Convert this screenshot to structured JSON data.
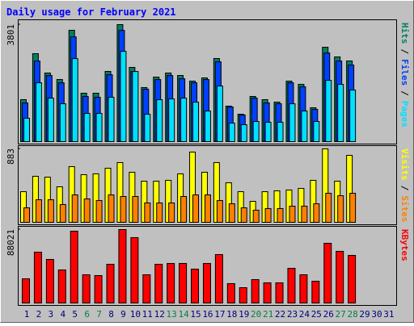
{
  "chart_data": [
    {
      "type": "bar",
      "title": "Daily usage for February 2021",
      "legend_separator": "/",
      "ylim": [
        0,
        3801
      ],
      "yticks": [
        3801
      ],
      "series": [
        {
          "name": "Hits",
          "color": "#008060",
          "values": [
            1380,
            2863,
            2239,
            2030,
            3618,
            1588,
            1588,
            2291,
            3801,
            2421,
            1770,
            2108,
            2239,
            2160,
            1978,
            2082,
            2707,
            1171,
            911,
            1484,
            1380,
            1301,
            1978,
            1874,
            1119,
            3071,
            2759,
            2629,
            null,
            null,
            null
          ]
        },
        {
          "name": "Files",
          "color": "#0040ff",
          "values": [
            1274,
            2626,
            2158,
            1924,
            3406,
            1482,
            1456,
            2184,
            3614,
            2288,
            1716,
            2028,
            2158,
            2054,
            1924,
            2028,
            2600,
            1144,
            884,
            1430,
            1274,
            1248,
            1924,
            1794,
            1066,
            2886,
            2626,
            2496,
            null,
            null,
            null
          ]
        },
        {
          "name": "Pages",
          "color": "#00e0ff",
          "values": [
            780,
            1924,
            1430,
            1248,
            2704,
            936,
            936,
            1456,
            2938,
            2288,
            910,
            1378,
            1404,
            1430,
            1300,
            1014,
            1820,
            624,
            572,
            676,
            650,
            650,
            1248,
            1014,
            676,
            2002,
            1872,
            1690,
            null,
            null,
            null
          ]
        }
      ]
    },
    {
      "type": "bar",
      "legend_separator": "/",
      "ylim": [
        0,
        883
      ],
      "yticks": [
        883
      ],
      "series": [
        {
          "name": "Visits",
          "color": "#ffff00",
          "values": [
            374,
            557,
            547,
            432,
            672,
            576,
            586,
            653,
            720,
            605,
            499,
            499,
            509,
            586,
            845,
            605,
            720,
            480,
            374,
            259,
            374,
            384,
            394,
            413,
            509,
            883,
            499,
            806,
            null,
            null,
            null
          ]
        },
        {
          "name": "Sites",
          "color": "#ff8000",
          "values": [
            182,
            278,
            278,
            221,
            336,
            288,
            269,
            336,
            317,
            317,
            240,
            240,
            240,
            317,
            336,
            336,
            269,
            230,
            182,
            154,
            173,
            173,
            202,
            202,
            230,
            355,
            326,
            355,
            null,
            null,
            null
          ]
        }
      ]
    },
    {
      "type": "bar",
      "ylim": [
        0,
        88021
      ],
      "yticks": [
        88021
      ],
      "series": [
        {
          "name": "KBytes",
          "color": "#ff0000",
          "values": [
            29667,
            61248,
            52635,
            40194,
            86130,
            34452,
            33495,
            46893,
            88021,
            78474,
            34452,
            46893,
            47850,
            47850,
            41151,
            47850,
            58377,
            23925,
            19140,
            28710,
            24882,
            24882,
            42108,
            34452,
            26796,
            71775,
            62205,
            57420,
            null,
            null,
            null
          ]
        }
      ],
      "categories": [
        "1",
        "2",
        "3",
        "4",
        "5",
        "6",
        "7",
        "8",
        "9",
        "10",
        "11",
        "12",
        "13",
        "14",
        "15",
        "16",
        "17",
        "18",
        "19",
        "20",
        "21",
        "22",
        "23",
        "24",
        "25",
        "26",
        "27",
        "28",
        "29",
        "30",
        "31"
      ],
      "category_colors": [
        "#000080",
        "#000080",
        "#000080",
        "#000080",
        "#000080",
        "#008040",
        "#008040",
        "#000080",
        "#000080",
        "#000080",
        "#000080",
        "#000080",
        "#008040",
        "#008040",
        "#000080",
        "#000080",
        "#000080",
        "#000080",
        "#000080",
        "#008040",
        "#008040",
        "#000080",
        "#000080",
        "#000080",
        "#000080",
        "#000080",
        "#008040",
        "#008040",
        "#000080",
        "#000080",
        "#000080"
      ]
    }
  ]
}
